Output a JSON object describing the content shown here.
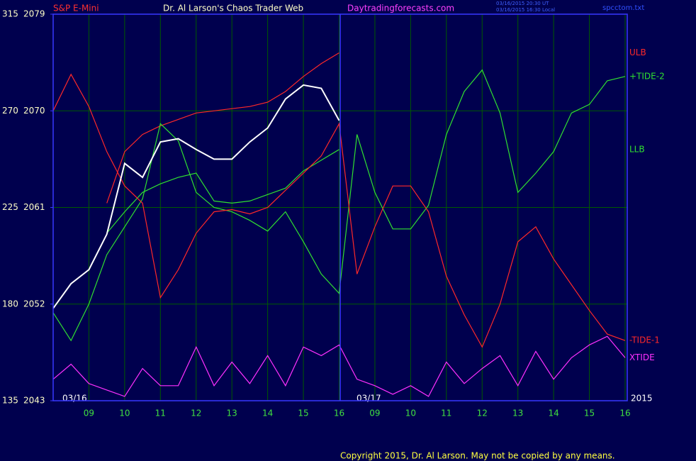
{
  "chart_data": {
    "type": "line",
    "instrument": "S&P E-Mini",
    "title": "Dr. Al Larson's Chaos Trader Web",
    "website": "Daytradingforecasts.com",
    "timestamps": [
      "03/16/2015 20:30 UT",
      "03/16/2015 16:30 Local"
    ],
    "file_name": "spcctom.txt",
    "date_labels": [
      "03/16",
      "03/17"
    ],
    "year_label": "2015",
    "copyright": "Copyright 2015, Dr. Al Larson. May not be copied by any means.",
    "grid": true,
    "x": [
      0,
      0.5,
      1,
      1.5,
      2,
      2.5,
      3,
      3.5,
      4,
      4.5,
      5,
      5.5,
      6,
      6.5,
      7,
      7.5,
      8,
      8.5,
      9,
      9.5,
      10,
      10.5,
      11,
      11.5,
      12,
      12.5,
      13,
      13.5,
      14,
      14.5,
      15,
      15.5,
      16
    ],
    "xlim": [
      0,
      16
    ],
    "xticks": [
      {
        "value": 1,
        "label": "09"
      },
      {
        "value": 2,
        "label": "10"
      },
      {
        "value": 3,
        "label": "11"
      },
      {
        "value": 4,
        "label": "12"
      },
      {
        "value": 5,
        "label": "13"
      },
      {
        "value": 6,
        "label": "14"
      },
      {
        "value": 7,
        "label": "15"
      },
      {
        "value": 8,
        "label": "16"
      },
      {
        "value": 9,
        "label": "09"
      },
      {
        "value": 10,
        "label": "10"
      },
      {
        "value": 11,
        "label": "11"
      },
      {
        "value": 12,
        "label": "12"
      },
      {
        "value": 13,
        "label": "13"
      },
      {
        "value": 14,
        "label": "14"
      },
      {
        "value": 15,
        "label": "15"
      },
      {
        "value": 16,
        "label": "16"
      }
    ],
    "ylim": [
      135,
      315
    ],
    "yticks": [
      135,
      180,
      225,
      270,
      315
    ],
    "y2lim": [
      2043,
      2079
    ],
    "y2ticks": [
      2043,
      2052,
      2061,
      2070,
      2079
    ],
    "series": [
      {
        "name": "ULB",
        "color": "#ff2828",
        "values": [
          null,
          null,
          null,
          227,
          251,
          259,
          263,
          266,
          269,
          270,
          271,
          272,
          274,
          279,
          286,
          292,
          297,
          null,
          null,
          null,
          null,
          null,
          null,
          null,
          null,
          null,
          null,
          null,
          null,
          null,
          null,
          null,
          null
        ]
      },
      {
        "name": "+TIDE-2",
        "color": "#30e030",
        "values": [
          176,
          163,
          180,
          203,
          216,
          229,
          264,
          256,
          232,
          225,
          223,
          219,
          214,
          223,
          209,
          194,
          185,
          259,
          232,
          215,
          215,
          226,
          259,
          279,
          289,
          269,
          232,
          241,
          251,
          269,
          273,
          284,
          286
        ]
      },
      {
        "name": "LLB",
        "color": "#30e030",
        "values": [
          null,
          null,
          null,
          213,
          223,
          232,
          236,
          239,
          241,
          228,
          227,
          228,
          231,
          234,
          242,
          247,
          252,
          null,
          null,
          null,
          null,
          null,
          null,
          null,
          null,
          null,
          null,
          null,
          null,
          null,
          null,
          null,
          null
        ]
      },
      {
        "name": "-TIDE-1",
        "color": "#ff2828",
        "values": [
          270,
          287,
          272,
          251,
          235,
          227,
          183,
          196,
          213,
          223,
          224,
          222,
          225,
          233,
          241,
          249,
          264,
          194,
          216,
          235,
          235,
          223,
          193,
          175,
          160,
          180,
          209,
          216,
          201,
          189,
          177,
          166,
          163
        ]
      },
      {
        "name": "XTIDE",
        "color": "#ff30ff",
        "values": [
          145,
          152,
          143,
          140,
          137,
          150,
          142,
          142,
          160,
          142,
          153,
          143,
          156,
          142,
          160,
          156,
          161,
          145,
          142,
          138,
          142,
          137,
          153,
          143,
          150,
          156,
          142,
          158,
          145,
          155,
          161,
          165,
          155
        ]
      },
      {
        "color": "#ffffff",
        "axis": "y2",
        "values": [
          2051.6,
          2053.9,
          2055.2,
          2058.5,
          2065.1,
          2063.8,
          2067.1,
          2067.4,
          2066.4,
          2065.5,
          2065.5,
          2067.1,
          2068.4,
          2071.1,
          2072.4,
          2072.1,
          2069.1,
          null,
          null,
          null,
          null,
          null,
          null,
          null,
          null,
          null,
          null,
          null,
          null,
          null,
          null,
          null,
          null
        ]
      }
    ]
  }
}
